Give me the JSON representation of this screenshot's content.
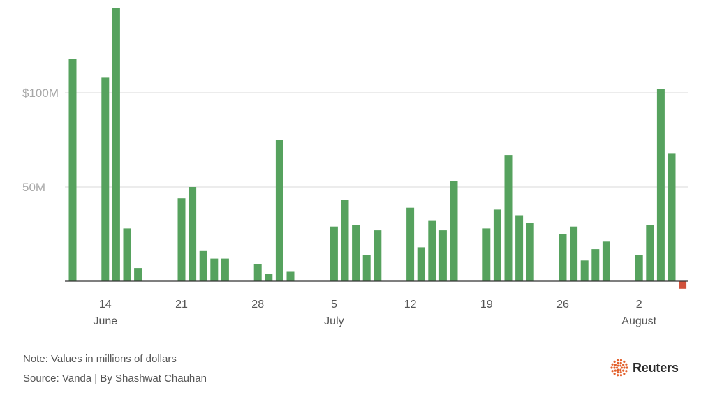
{
  "chart_data": {
    "type": "bar",
    "title": "",
    "xlabel": "",
    "ylabel": "",
    "ylim": [
      -5,
      146
    ],
    "yticks": [
      {
        "value": 50,
        "label": "50M"
      },
      {
        "value": 100,
        "label": "$100M"
      }
    ],
    "x_ticks": [
      {
        "day": 14,
        "label": "14"
      },
      {
        "day": 21,
        "label": "21"
      },
      {
        "day": 28,
        "label": "28"
      },
      {
        "day": 35,
        "label": "5"
      },
      {
        "day": 42,
        "label": "12"
      },
      {
        "day": 49,
        "label": "19"
      },
      {
        "day": 56,
        "label": "26"
      },
      {
        "day": 63,
        "label": "2"
      }
    ],
    "months": [
      {
        "day": 14,
        "label": "June"
      },
      {
        "day": 35,
        "label": "July"
      },
      {
        "day": 63,
        "label": "August"
      }
    ],
    "grid": true,
    "positive_color": "#56a25e",
    "negative_color": "#d0513b",
    "bars": [
      {
        "date": "June 11",
        "day": 11,
        "value": 118
      },
      {
        "date": "June 14",
        "day": 14,
        "value": 108
      },
      {
        "date": "June 15",
        "day": 15,
        "value": 145
      },
      {
        "date": "June 16",
        "day": 16,
        "value": 28
      },
      {
        "date": "June 17",
        "day": 17,
        "value": 7
      },
      {
        "date": "June 21",
        "day": 21,
        "value": 44
      },
      {
        "date": "June 22",
        "day": 22,
        "value": 50
      },
      {
        "date": "June 23",
        "day": 23,
        "value": 16
      },
      {
        "date": "June 24",
        "day": 24,
        "value": 12
      },
      {
        "date": "June 25",
        "day": 25,
        "value": 12
      },
      {
        "date": "June 28",
        "day": 28,
        "value": 9
      },
      {
        "date": "June 29",
        "day": 29,
        "value": 4
      },
      {
        "date": "June 30",
        "day": 30,
        "value": 75
      },
      {
        "date": "July 1",
        "day": 31,
        "value": 5
      },
      {
        "date": "July 5",
        "day": 35,
        "value": 29
      },
      {
        "date": "July 6",
        "day": 36,
        "value": 43
      },
      {
        "date": "July 7",
        "day": 37,
        "value": 30
      },
      {
        "date": "July 8",
        "day": 38,
        "value": 14
      },
      {
        "date": "July 9",
        "day": 39,
        "value": 27
      },
      {
        "date": "July 12",
        "day": 42,
        "value": 39
      },
      {
        "date": "July 13",
        "day": 43,
        "value": 18
      },
      {
        "date": "July 14",
        "day": 44,
        "value": 32
      },
      {
        "date": "July 15",
        "day": 45,
        "value": 27
      },
      {
        "date": "July 16",
        "day": 46,
        "value": 53
      },
      {
        "date": "July 19",
        "day": 49,
        "value": 28
      },
      {
        "date": "July 20",
        "day": 50,
        "value": 38
      },
      {
        "date": "July 21",
        "day": 51,
        "value": 67
      },
      {
        "date": "July 22",
        "day": 52,
        "value": 35
      },
      {
        "date": "July 23",
        "day": 53,
        "value": 31
      },
      {
        "date": "July 26",
        "day": 56,
        "value": 25
      },
      {
        "date": "July 27",
        "day": 57,
        "value": 29
      },
      {
        "date": "July 28",
        "day": 58,
        "value": 11
      },
      {
        "date": "July 29",
        "day": 59,
        "value": 17
      },
      {
        "date": "July 30",
        "day": 60,
        "value": 21
      },
      {
        "date": "August 2",
        "day": 63,
        "value": 14
      },
      {
        "date": "August 3",
        "day": 64,
        "value": 30
      },
      {
        "date": "August 4",
        "day": 65,
        "value": 102
      },
      {
        "date": "August 5",
        "day": 66,
        "value": 68
      },
      {
        "date": "August 6",
        "day": 67,
        "value": -4
      }
    ]
  },
  "footer": {
    "note": "Note: Values in millions of dollars",
    "source": "Source: Vanda | By Shashwat Chauhan"
  },
  "logo": {
    "text": "Reuters",
    "color": "#e2602c"
  }
}
